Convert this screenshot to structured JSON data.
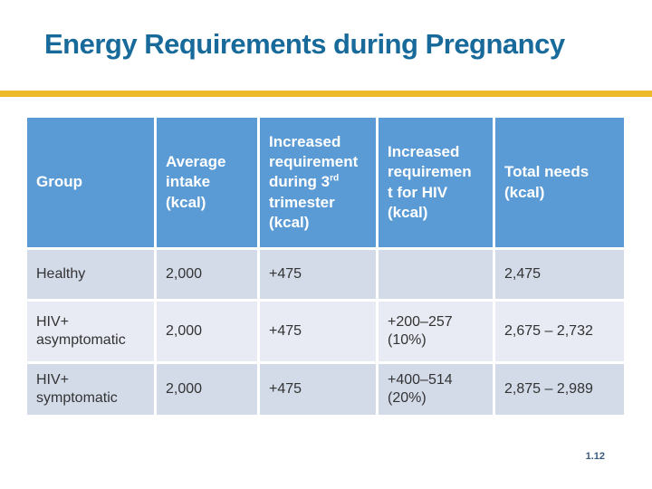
{
  "slide": {
    "title": "Energy Requirements during Pregnancy",
    "page_number": "1.12"
  },
  "colors": {
    "title_text": "#186A9B",
    "accent_bar_gold": "#ECB928",
    "table_header_bg": "#5B9BD5",
    "table_header_text": "#FFFFFF",
    "row_band_dark": "#D3DBE9",
    "row_band_light": "#E8EBF3",
    "body_text": "#333333",
    "page_number_text": "#3C5A7D"
  },
  "table": {
    "headers": {
      "group": "Group",
      "average_intake": "Average\nintake\n(kcal)",
      "trimester_pre": "Increased\nrequirement\nduring 3",
      "trimester_sup": "rd",
      "trimester_post": "\ntrimester\n(kcal)",
      "hiv_requirement": "Increased\nrequiremen\nt for HIV\n(kcal)",
      "total_needs": "Total needs\n(kcal)"
    },
    "rows": [
      {
        "group": "Healthy",
        "average_intake": "2,000",
        "trimester_increase": "+475",
        "hiv_increase": "",
        "total_needs": "2,475"
      },
      {
        "group": "HIV+\nasymptomatic",
        "average_intake": "2,000",
        "trimester_increase": "+475",
        "hiv_increase": "+200–257\n(10%)",
        "total_needs": "2,675 – 2,732"
      },
      {
        "group": "HIV+\nsymptomatic",
        "average_intake": "2,000",
        "trimester_increase": "+475",
        "hiv_increase": "+400–514\n(20%)",
        "total_needs": "2,875 – 2,989"
      }
    ]
  }
}
